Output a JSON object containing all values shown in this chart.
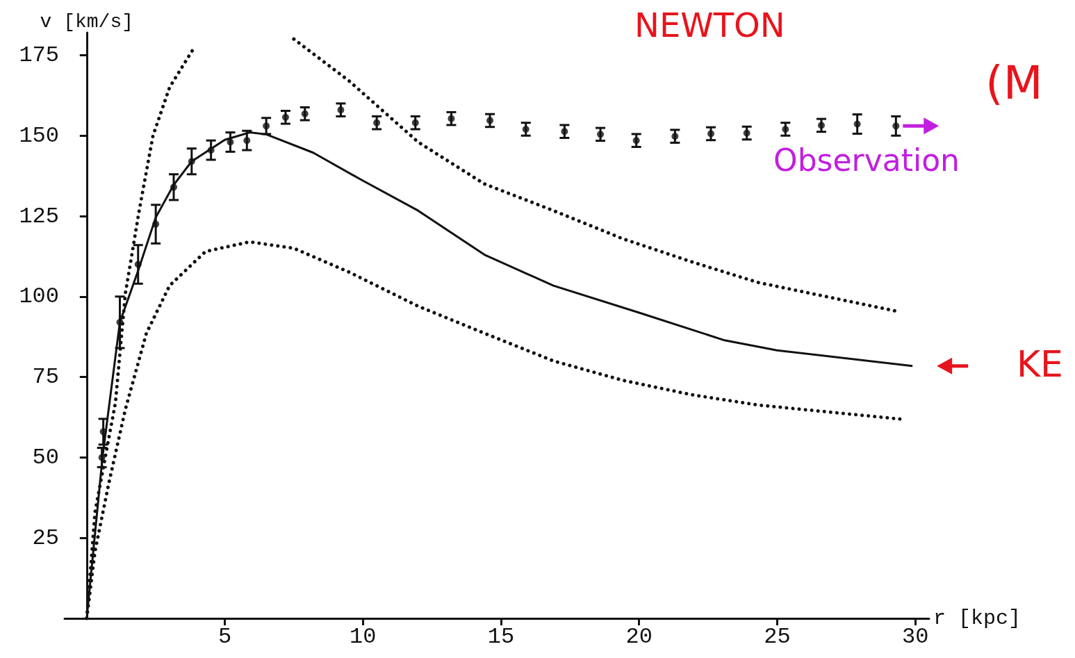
{
  "chart_data": {
    "type": "scatter",
    "xlabel": "r [kpc]",
    "ylabel": "v [km/s]",
    "xlim": [
      -0.8,
      30.5
    ],
    "xticks": [
      5,
      10,
      15,
      20,
      25,
      30
    ],
    "ylim": [
      0,
      182
    ],
    "yticks": [
      25,
      50,
      75,
      100,
      125,
      150,
      175
    ],
    "grid": false,
    "annotations": [
      "NEWTON",
      "(M",
      "Observation",
      "KE"
    ],
    "series": [
      {
        "color": "#111111",
        "marker": "circle",
        "x": [
          0.55,
          0.6,
          1.2,
          1.86,
          2.5,
          3.15,
          3.8,
          4.5,
          5.2,
          5.8,
          6.5,
          7.2,
          7.9,
          9.2,
          10.5,
          11.9,
          13.2,
          14.6,
          15.9,
          17.3,
          18.6,
          19.9,
          21.3,
          22.6,
          23.9,
          25.3,
          26.6,
          27.9,
          29.3
        ],
        "values": [
          50,
          58,
          92,
          110,
          122.5,
          134,
          142,
          145.5,
          148,
          148.5,
          153,
          155.7,
          156.8,
          158,
          154,
          154,
          155.3,
          154.7,
          152,
          151.3,
          150.4,
          148.5,
          149.8,
          150.6,
          150.8,
          152,
          153.2,
          153.6,
          153
        ],
        "errors": [
          3,
          4,
          8,
          6,
          6,
          4,
          4,
          3,
          3,
          3,
          2.5,
          2,
          2,
          2,
          2,
          2,
          2,
          2,
          2,
          2,
          2,
          2,
          2,
          2,
          2,
          2,
          2,
          3,
          3
        ]
      },
      {
        "type": "line",
        "color": "#111111",
        "line_style": "solid",
        "x": [
          0,
          0.57,
          1.2,
          1.86,
          2.5,
          3.15,
          3.8,
          5,
          5.9,
          6.5,
          8.2,
          10,
          12,
          14.4,
          16.9,
          20,
          23.1,
          25,
          29.9
        ],
        "values": [
          0,
          50,
          92,
          108,
          124.6,
          134.7,
          142,
          148.7,
          151,
          150.4,
          144.7,
          136,
          126.7,
          113,
          103.4,
          95,
          86.4,
          83.3,
          78.4
        ]
      },
      {
        "type": "line",
        "color": "#111111",
        "line_style": "dotted",
        "x": [
          0,
          0.3,
          1.04,
          1.4,
          1.9,
          2.4,
          3,
          3.9,
          5.5,
          7.5,
          9.5,
          12,
          14.4,
          16.9,
          19.4,
          21.9,
          24.3,
          29.3
        ],
        "values": [
          0,
          33,
          67,
          101,
          126.7,
          150,
          165,
          177.5,
          null,
          180,
          167,
          148,
          135,
          126.7,
          118,
          110.8,
          104.4,
          95.5
        ]
      },
      {
        "type": "line",
        "color": "#111111",
        "line_style": "dotted",
        "x": [
          0,
          0.3,
          0.8,
          1.4,
          2.16,
          3,
          4.3,
          5.9,
          7.5,
          9.5,
          12,
          14.4,
          16.9,
          19.4,
          21.9,
          24.3,
          29.5
        ],
        "values": [
          0,
          20.8,
          42,
          65,
          88.6,
          103.4,
          114,
          117,
          115,
          107.6,
          97,
          88.6,
          80,
          74,
          69.5,
          66.3,
          61.9
        ]
      }
    ]
  }
}
